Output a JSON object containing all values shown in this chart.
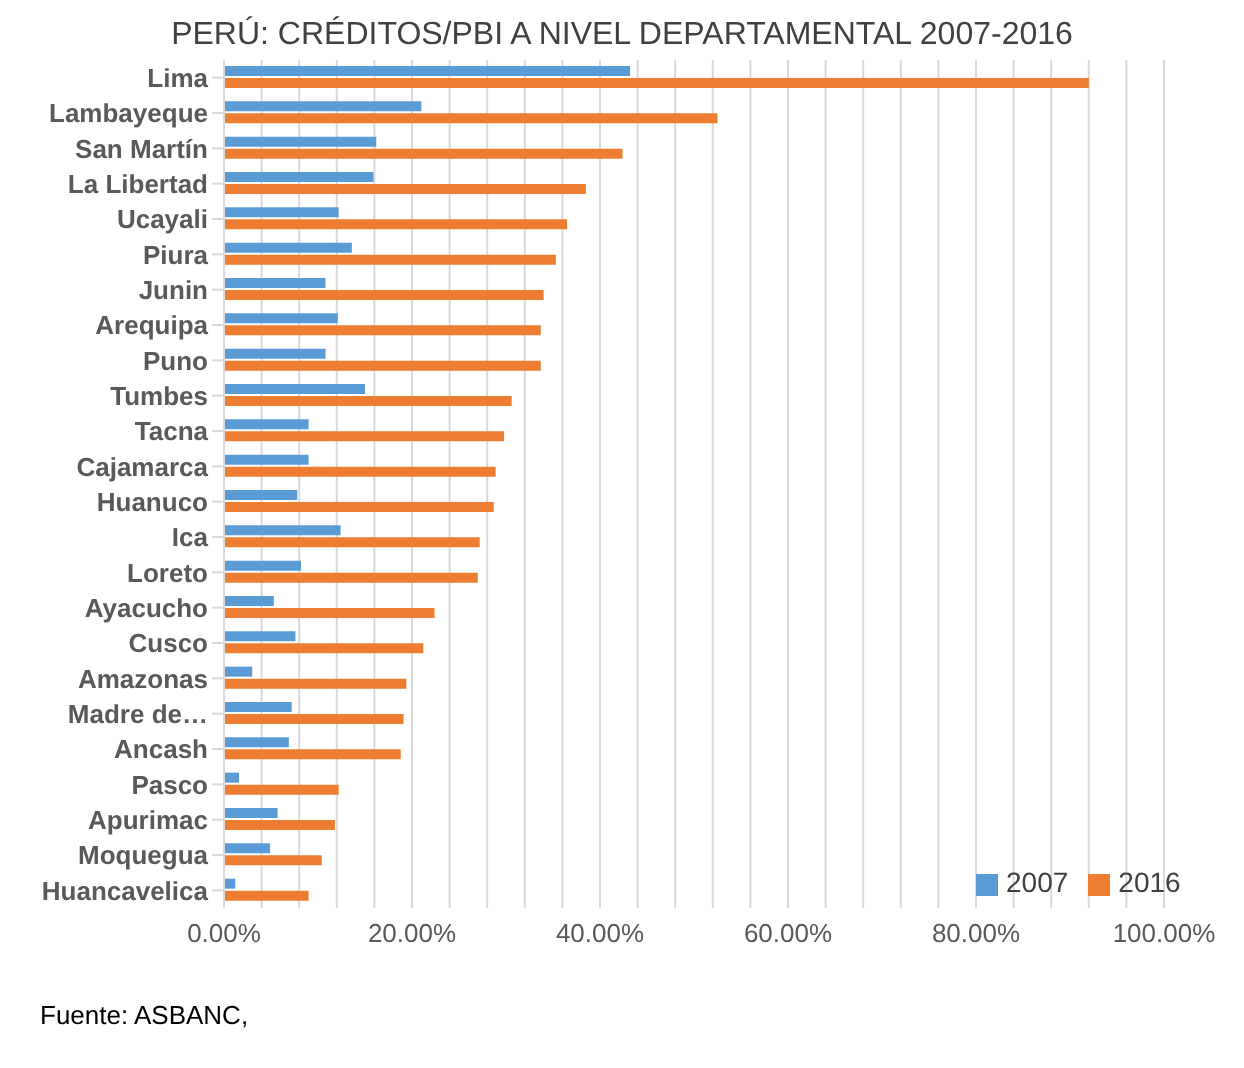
{
  "chart_data": {
    "type": "bar",
    "orientation": "horizontal",
    "title": "PERÚ: CRÉDITOS/PBI A NIVEL DEPARTAMENTAL 2007-2016",
    "categories": [
      "Lima",
      "Lambayeque",
      "San Martín",
      "La Libertad",
      "Ucayali",
      "Piura",
      "Junin",
      "Arequipa",
      "Puno",
      "Tumbes",
      "Tacna",
      "Cajamarca",
      "Huanuco",
      "Ica",
      "Loreto",
      "Ayacucho",
      "Cusco",
      "Amazonas",
      "Madre de…",
      "Ancash",
      "Pasco",
      "Apurimac",
      "Moquegua",
      "Huancavelica"
    ],
    "series": [
      {
        "name": "2007",
        "color": "#5b9bd5",
        "values": [
          43.2,
          21.0,
          16.2,
          15.9,
          12.2,
          13.6,
          10.8,
          12.1,
          10.8,
          15.0,
          9.0,
          9.0,
          7.8,
          12.4,
          8.2,
          5.3,
          7.6,
          3.0,
          7.2,
          6.9,
          1.6,
          5.7,
          4.9,
          1.2
        ]
      },
      {
        "name": "2016",
        "color": "#ed7d31",
        "values": [
          92.0,
          52.5,
          42.4,
          38.5,
          36.5,
          35.3,
          34.0,
          33.7,
          33.7,
          30.6,
          29.8,
          28.9,
          28.7,
          27.2,
          27.0,
          22.4,
          21.2,
          19.4,
          19.1,
          18.8,
          12.2,
          11.8,
          10.4,
          9.0
        ]
      }
    ],
    "xlim": [
      0,
      100
    ],
    "xticks": [
      {
        "value": 0,
        "label": "0.00%"
      },
      {
        "value": 4,
        "label": null
      },
      {
        "value": 8,
        "label": null
      },
      {
        "value": 12,
        "label": null
      },
      {
        "value": 16,
        "label": null
      },
      {
        "value": 20,
        "label": "20.00%"
      },
      {
        "value": 24,
        "label": null
      },
      {
        "value": 28,
        "label": null
      },
      {
        "value": 32,
        "label": null
      },
      {
        "value": 36,
        "label": null
      },
      {
        "value": 40,
        "label": "40.00%"
      },
      {
        "value": 44,
        "label": null
      },
      {
        "value": 48,
        "label": null
      },
      {
        "value": 52,
        "label": null
      },
      {
        "value": 56,
        "label": null
      },
      {
        "value": 60,
        "label": "60.00%"
      },
      {
        "value": 64,
        "label": null
      },
      {
        "value": 68,
        "label": null
      },
      {
        "value": 72,
        "label": null
      },
      {
        "value": 76,
        "label": null
      },
      {
        "value": 80,
        "label": "80.00%"
      },
      {
        "value": 84,
        "label": null
      },
      {
        "value": 88,
        "label": null
      },
      {
        "value": 92,
        "label": null
      },
      {
        "value": 96,
        "label": null
      },
      {
        "value": 100,
        "label": "100.00%"
      }
    ],
    "grid": "x",
    "legend": "bottom right",
    "annotations": [
      "Fuente: ASBANC,"
    ]
  }
}
